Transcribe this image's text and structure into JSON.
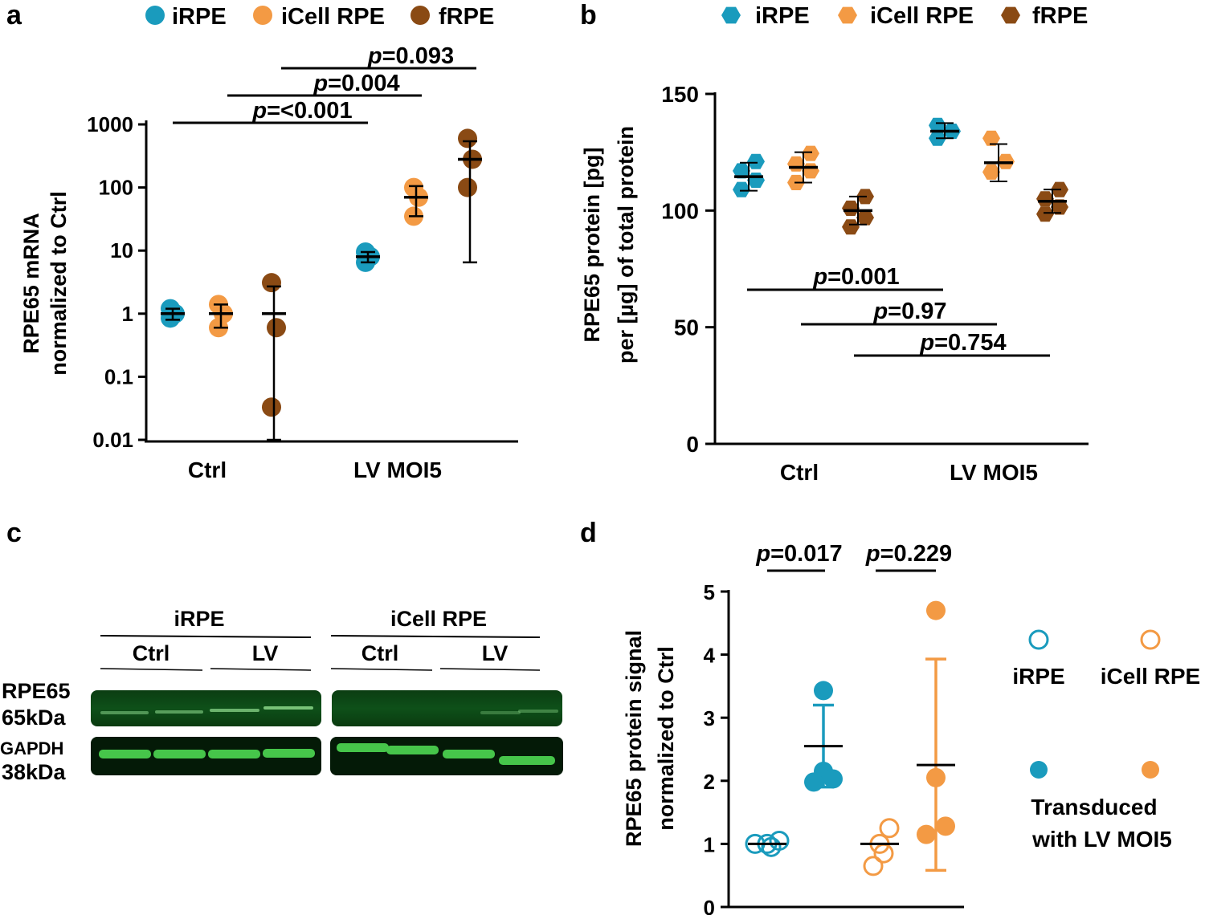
{
  "colors": {
    "iRPE": "#1a9bbd",
    "iCell": "#f39a44",
    "fRPE": "#8a4a14"
  },
  "panels": {
    "a": "a",
    "b": "b",
    "c": "c",
    "d": "d"
  },
  "chart_data": [
    {
      "panel": "a",
      "type": "scatter",
      "ylabel": "RPE65 mRNA\nnormalized to Ctrl",
      "yscale": "log",
      "ylim": [
        0.01,
        1000
      ],
      "yticks": [
        "0.01",
        "0.1",
        "1",
        "10",
        "100",
        "1000"
      ],
      "categories": [
        "Ctrl",
        "LV MOI5"
      ],
      "legend": [
        "iRPE",
        "iCell RPE",
        "fRPE"
      ],
      "series": [
        {
          "name": "iRPE",
          "groups": [
            {
              "mean": 1.0,
              "sd_low": 0.8,
              "sd_high": 1.2,
              "points": [
                0.85,
                1.0,
                1.2
              ]
            },
            {
              "mean": 8.0,
              "sd_low": 6.5,
              "sd_high": 9.5,
              "points": [
                6.5,
                8.0,
                9.5
              ]
            }
          ]
        },
        {
          "name": "iCell RPE",
          "groups": [
            {
              "mean": 1.0,
              "sd_low": 0.6,
              "sd_high": 1.4,
              "points": [
                0.6,
                1.0,
                1.4
              ]
            },
            {
              "mean": 70,
              "sd_low": 35,
              "sd_high": 105,
              "points": [
                35,
                70,
                100
              ]
            }
          ]
        },
        {
          "name": "fRPE",
          "groups": [
            {
              "mean": 1.0,
              "sd_low": 0.01,
              "sd_high": 2.7,
              "points": [
                0.033,
                0.6,
                3.1
              ]
            },
            {
              "mean": 280,
              "sd_low": 6.5,
              "sd_high": 540,
              "points": [
                100,
                280,
                600
              ]
            }
          ]
        }
      ],
      "comparisons": [
        "p=<0.001",
        "p=0.004",
        "p=0.093"
      ]
    },
    {
      "panel": "b",
      "type": "scatter",
      "ylabel": "RPE65 protein [pg]\nper [µg] of total protein",
      "ylim": [
        0,
        150
      ],
      "yticks": [
        "0",
        "50",
        "100",
        "150"
      ],
      "categories": [
        "Ctrl",
        "LV MOI5"
      ],
      "legend": [
        "iRPE",
        "iCell RPE",
        "fRPE"
      ],
      "series": [
        {
          "name": "iRPE",
          "groups": [
            {
              "mean": 114.5,
              "sd_low": 108.5,
              "sd_high": 120.5,
              "points": [
                109,
                113,
                117,
                121
              ]
            },
            {
              "mean": 134,
              "sd_low": 131,
              "sd_high": 137.5,
              "points": [
                131,
                134,
                136.5
              ]
            }
          ]
        },
        {
          "name": "iCell RPE",
          "groups": [
            {
              "mean": 118.5,
              "sd_low": 112,
              "sd_high": 125,
              "points": [
                112,
                117,
                120,
                124.5
              ]
            },
            {
              "mean": 120.5,
              "sd_low": 112.5,
              "sd_high": 128.5,
              "points": [
                116.5,
                121,
                131
              ]
            }
          ]
        },
        {
          "name": "fRPE",
          "groups": [
            {
              "mean": 100,
              "sd_low": 94,
              "sd_high": 106,
              "points": [
                93,
                97,
                101,
                106
              ]
            },
            {
              "mean": 104,
              "sd_low": 99,
              "sd_high": 109,
              "points": [
                98.5,
                101.5,
                105,
                109
              ]
            }
          ]
        }
      ],
      "comparisons": [
        "p=0.001",
        "p=0.97",
        "p=0.754"
      ]
    },
    {
      "panel": "d",
      "type": "scatter",
      "ylabel": "RPE65 protein signal\nnormalized to Ctrl",
      "ylim": [
        0,
        5
      ],
      "yticks": [
        "0",
        "1",
        "2",
        "3",
        "4",
        "5"
      ],
      "groups": [
        {
          "name": "iRPE Ctrl",
          "filled": false,
          "mean": 1.0,
          "points": [
            1.0,
            1.0,
            1.05,
            0.95
          ]
        },
        {
          "name": "iRPE LV",
          "filled": true,
          "mean": 2.55,
          "sd_low": 1.9,
          "sd_high": 3.2,
          "points": [
            3.43,
            2.15,
            2.03,
            1.98
          ]
        },
        {
          "name": "iCell RPE Ctrl",
          "filled": false,
          "mean": 1.0,
          "points": [
            1.25,
            1.0,
            0.85,
            0.65
          ]
        },
        {
          "name": "iCell RPE LV",
          "filled": true,
          "mean": 2.25,
          "sd_low": 0.58,
          "sd_high": 3.93,
          "points": [
            4.7,
            2.05,
            1.28,
            1.15
          ]
        }
      ],
      "comparisons": [
        "p=0.017",
        "p=0.229"
      ],
      "legend": {
        "iRPE": "iRPE",
        "iCell": "iCell RPE",
        "transduced_line1": "Transduced",
        "transduced_line2": "with LV MOI5"
      }
    }
  ],
  "blot": {
    "groups": [
      "iRPE",
      "iCell RPE"
    ],
    "lanes": [
      "Ctrl",
      "LV",
      "Ctrl",
      "LV"
    ],
    "rows": [
      {
        "name_line1": "RPE65",
        "name_line2": "65kDa"
      },
      {
        "name_line1": "GAPDH",
        "name_line2": "38kDa"
      }
    ]
  }
}
